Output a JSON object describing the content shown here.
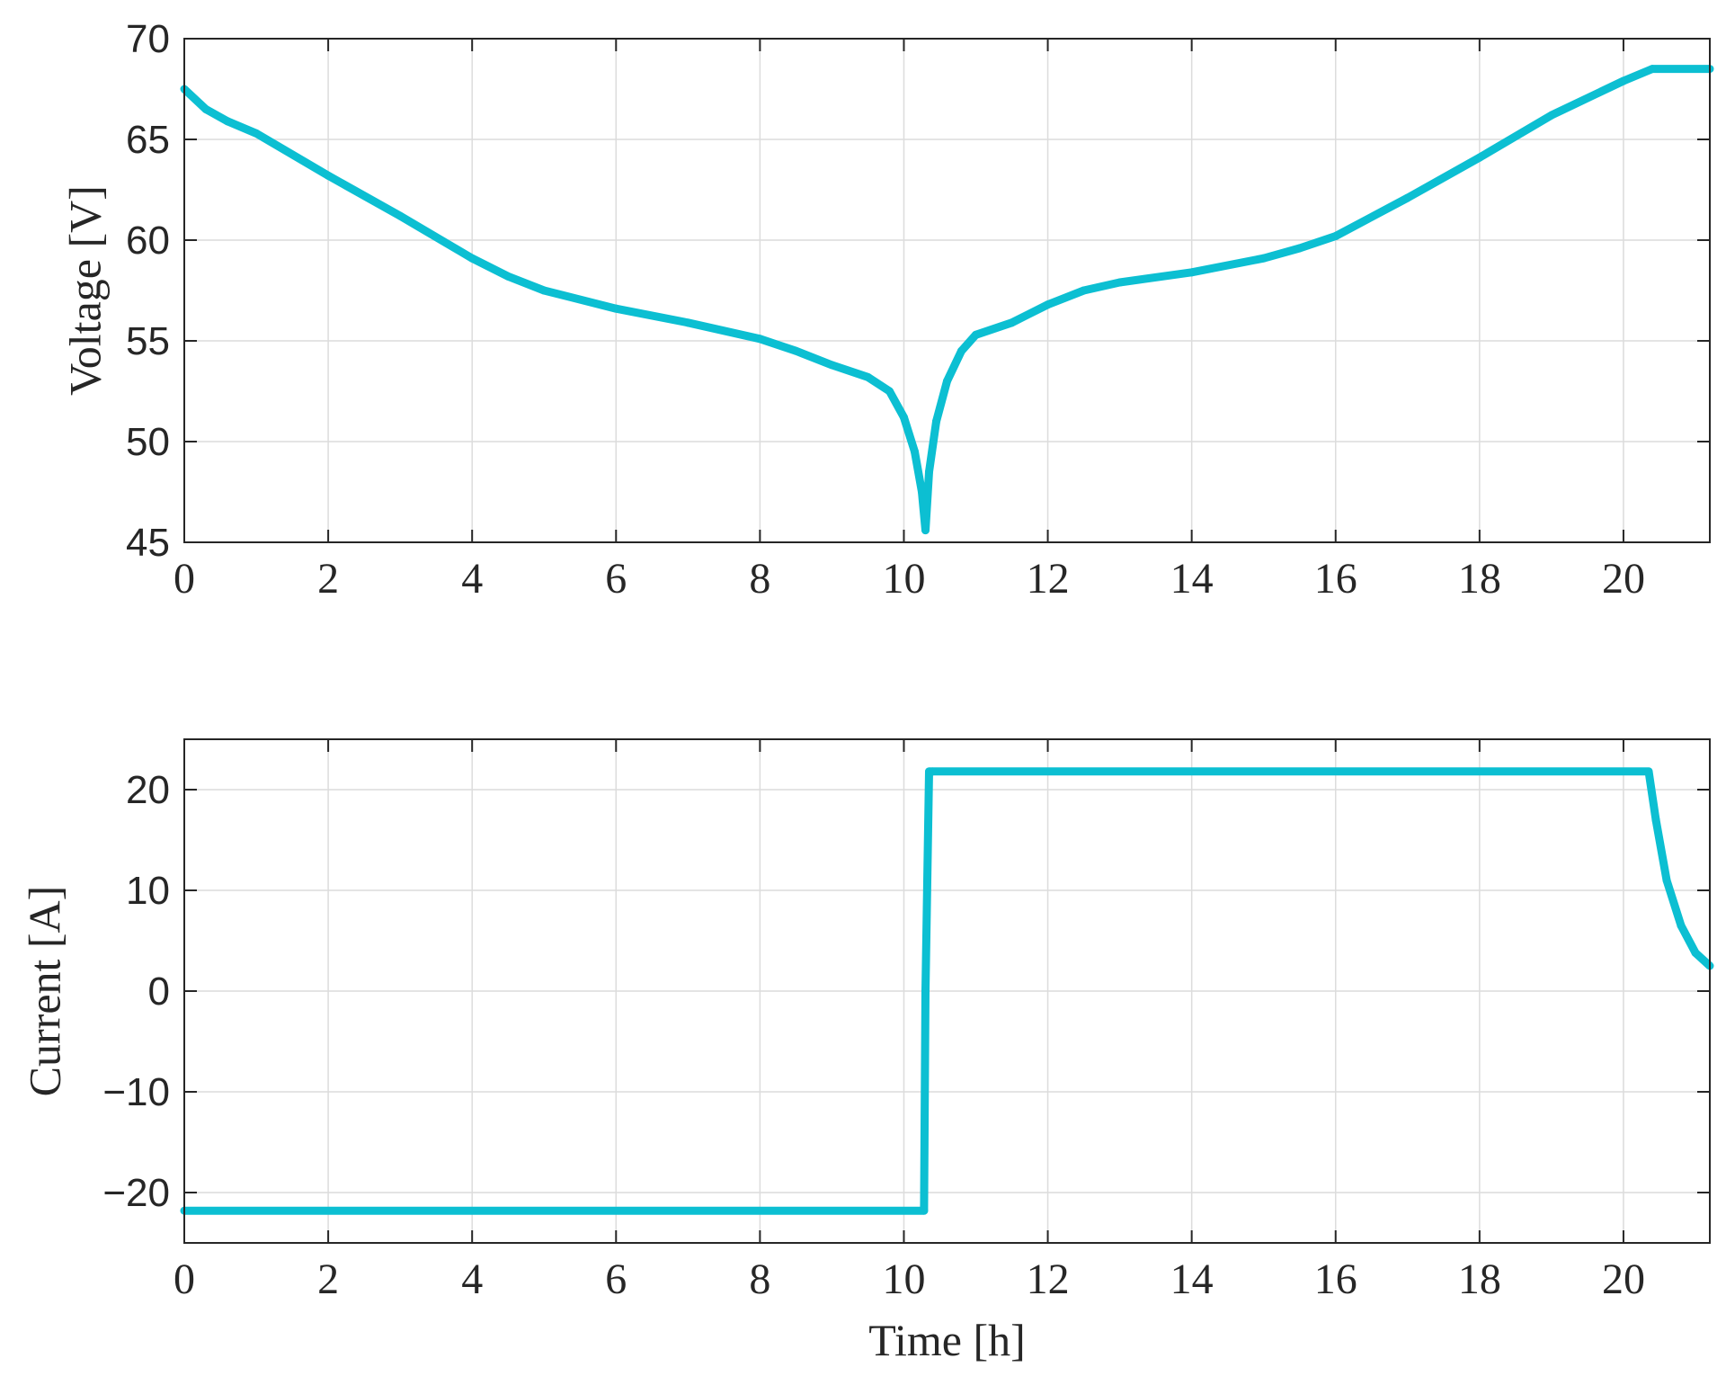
{
  "colors": {
    "series": "#0cbfd2",
    "axis": "#262626",
    "grid": "#dcdcdc"
  },
  "chart_data": [
    {
      "type": "line",
      "xlabel": "",
      "ylabel": "Voltage [V]",
      "xlim": [
        0,
        21.2
      ],
      "ylim": [
        45,
        70
      ],
      "xticks": [
        "0",
        "2",
        "4",
        "6",
        "8",
        "10",
        "12",
        "14",
        "16",
        "18",
        "20"
      ],
      "yticks": [
        "45",
        "50",
        "55",
        "60",
        "65",
        "70"
      ],
      "grid": true,
      "series": [
        {
          "x": [
            0,
            0.3,
            0.6,
            1,
            2,
            3,
            4,
            4.5,
            5,
            6,
            7,
            8,
            8.5,
            9,
            9.5,
            9.8,
            10,
            10.15,
            10.25,
            10.3,
            10.35,
            10.45,
            10.6,
            10.8,
            11,
            11.5,
            12,
            12.5,
            13,
            14,
            15,
            15.5,
            16,
            17,
            18,
            19,
            20,
            20.4,
            21.2
          ],
          "y": [
            67.5,
            66.5,
            65.9,
            65.3,
            63.2,
            61.2,
            59.1,
            58.2,
            57.5,
            56.6,
            55.9,
            55.1,
            54.5,
            53.8,
            53.2,
            52.5,
            51.2,
            49.5,
            47.5,
            45.6,
            48.5,
            51,
            53,
            54.5,
            55.3,
            55.9,
            56.8,
            57.5,
            57.9,
            58.4,
            59.1,
            59.6,
            60.2,
            62.1,
            64.1,
            66.2,
            67.9,
            68.5,
            68.5
          ]
        }
      ]
    },
    {
      "type": "line",
      "xlabel": "Time [h]",
      "ylabel": "Current [A]",
      "xlim": [
        0,
        21.2
      ],
      "ylim": [
        -25,
        25
      ],
      "xticks": [
        "0",
        "2",
        "4",
        "6",
        "8",
        "10",
        "12",
        "14",
        "16",
        "18",
        "20"
      ],
      "yticks": [
        "−20",
        "−10",
        "0",
        "10",
        "20"
      ],
      "grid": true,
      "series": [
        {
          "x": [
            0,
            10.28,
            10.3,
            10.35,
            10.4,
            20.35,
            20.45,
            20.6,
            20.8,
            21,
            21.2
          ],
          "y": [
            -21.8,
            -21.8,
            0,
            21.8,
            21.8,
            21.8,
            17,
            11,
            6.5,
            3.8,
            2.5
          ]
        }
      ]
    }
  ]
}
